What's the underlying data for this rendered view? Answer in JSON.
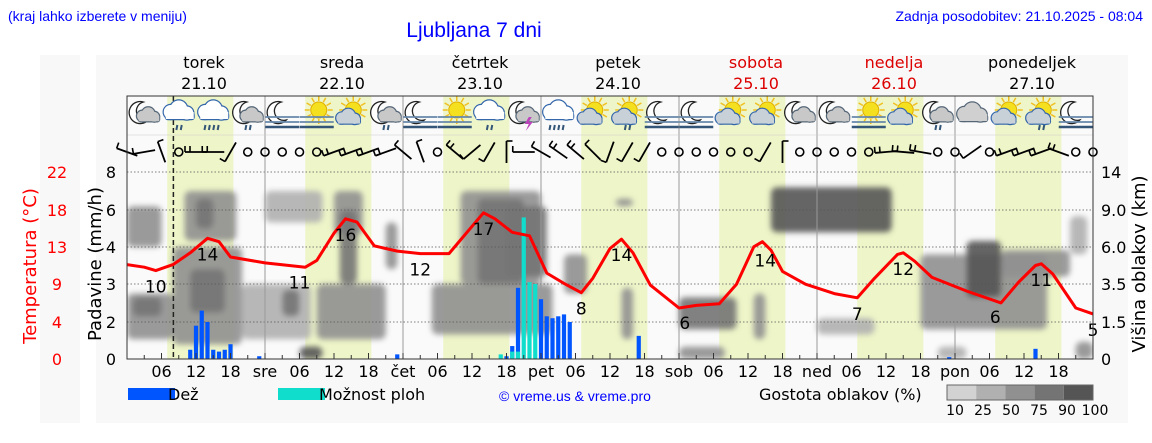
{
  "header": {
    "region_hint": "(kraj lahko izberete v meniju)",
    "title": "Ljubljana 7 dni",
    "updated": "Zadnja posodobitev: 21.10.2025 - 08:04"
  },
  "colors": {
    "link": "#0000ff",
    "weekend": "#dd0000",
    "temperature": "#ff0000",
    "rain": "#0055ff",
    "shower": "#11ddcc",
    "daylight": "#eef5c8",
    "background": "#f8f8f8"
  },
  "legend": {
    "rain": "Dež",
    "shower": "Možnost ploh",
    "copyright": "© vreme.us & vreme.pro",
    "cloud_density": "Gostota oblakov (%)",
    "density_steps": [
      "10",
      "25",
      "50",
      "75",
      "90",
      "100"
    ],
    "density_colors": [
      "#d2d2d2",
      "#b0b0b0",
      "#909090",
      "#747474",
      "#555555"
    ]
  },
  "chart_data": {
    "type": "line+bar+heatmap",
    "title": "Ljubljana 7 dni",
    "days": [
      {
        "name": "torek",
        "date": "21.10",
        "weekend": false
      },
      {
        "name": "sreda",
        "date": "22.10",
        "weekend": false
      },
      {
        "name": "četrtek",
        "date": "23.10",
        "weekend": false
      },
      {
        "name": "petek",
        "date": "24.10",
        "weekend": false
      },
      {
        "name": "sobota",
        "date": "25.10",
        "weekend": true
      },
      {
        "name": "nedelja",
        "date": "26.10",
        "weekend": true
      },
      {
        "name": "ponedeljek",
        "date": "27.10",
        "weekend": false
      }
    ],
    "x_tick_labels": [
      "",
      "06",
      "12",
      "18",
      "sre",
      "06",
      "12",
      "18",
      "čet",
      "06",
      "12",
      "18",
      "pet",
      "06",
      "12",
      "18",
      "sob",
      "06",
      "12",
      "18",
      "ned",
      "06",
      "12",
      "18",
      "pon",
      "06",
      "12",
      "18"
    ],
    "now": "21.10 08:04",
    "daylight": {
      "from": "07:00",
      "to": "18:30"
    },
    "y_temperature": {
      "label": "Temperatura (°C)",
      "ticks": [
        "0",
        "4",
        "9",
        "13",
        "18",
        "22"
      ],
      "range": [
        0,
        22
      ]
    },
    "y_precip": {
      "label": "Padavine (mm/h)",
      "ticks": [
        "0",
        "2",
        "3",
        "4",
        "6",
        "8"
      ]
    },
    "y_cloud_height": {
      "label": "Višina oblakov (km)",
      "ticks": [
        "0",
        "1.5",
        "3.5",
        "6.0",
        "9.0",
        "14"
      ]
    },
    "temperature": [
      [
        "21.10 00:00",
        11.1
      ],
      [
        "21.10 03:00",
        10.8
      ],
      [
        "21.10 05:00",
        10.4
      ],
      [
        "21.10 08:00",
        11.1
      ],
      [
        "21.10 11:00",
        12.5
      ],
      [
        "21.10 14:00",
        14.2
      ],
      [
        "21.10 16:00",
        13.8
      ],
      [
        "21.10 18:00",
        12.0
      ],
      [
        "22.10 00:00",
        11.3
      ],
      [
        "22.10 07:00",
        10.8
      ],
      [
        "22.10 09:00",
        11.6
      ],
      [
        "22.10 12:00",
        14.8
      ],
      [
        "22.10 14:00",
        16.5
      ],
      [
        "22.10 16:00",
        16.1
      ],
      [
        "22.10 19:00",
        13.3
      ],
      [
        "22.10 23:00",
        12.7
      ],
      [
        "23.10 03:00",
        12.4
      ],
      [
        "23.10 08:00",
        12.4
      ],
      [
        "23.10 10:00",
        14.0
      ],
      [
        "23.10 14:00",
        17.2
      ],
      [
        "23.10 16:00",
        16.5
      ],
      [
        "23.10 19:00",
        14.9
      ],
      [
        "23.10 22:00",
        14.5
      ],
      [
        "24.10 01:00",
        10.1
      ],
      [
        "24.10 04:00",
        8.9
      ],
      [
        "24.10 07:00",
        7.8
      ],
      [
        "24.10 09:00",
        9.5
      ],
      [
        "24.10 12:00",
        13.0
      ],
      [
        "24.10 14:00",
        14.1
      ],
      [
        "24.10 16:00",
        12.5
      ],
      [
        "24.10 19:00",
        8.7
      ],
      [
        "25.10 00:00",
        6.0
      ],
      [
        "25.10 03:00",
        6.3
      ],
      [
        "25.10 07:00",
        6.5
      ],
      [
        "25.10 10:00",
        8.8
      ],
      [
        "25.10 13:00",
        13.2
      ],
      [
        "25.10 14:30",
        13.8
      ],
      [
        "25.10 16:00",
        12.8
      ],
      [
        "25.10 18:00",
        10.3
      ],
      [
        "25.10 22:00",
        8.8
      ],
      [
        "26.10 03:00",
        7.7
      ],
      [
        "26.10 07:00",
        7.2
      ],
      [
        "26.10 10:00",
        9.5
      ],
      [
        "26.10 14:00",
        12.3
      ],
      [
        "26.10 15:00",
        12.5
      ],
      [
        "26.10 17:00",
        11.5
      ],
      [
        "26.10 20:00",
        9.6
      ],
      [
        "27.10 02:00",
        8.0
      ],
      [
        "27.10 08:00",
        6.6
      ],
      [
        "27.10 11:00",
        9.0
      ],
      [
        "27.10 14:00",
        11.0
      ],
      [
        "27.10 15:00",
        11.2
      ],
      [
        "27.10 17:00",
        10.0
      ],
      [
        "27.10 21:00",
        6.0
      ],
      [
        "28.10 00:00",
        5.3
      ]
    ],
    "temperature_labels": [
      [
        "21.10 05:00",
        "10"
      ],
      [
        "21.10 14:00",
        "14"
      ],
      [
        "22.10 06:00",
        "11"
      ],
      [
        "22.10 14:00",
        "16"
      ],
      [
        "23.10 03:00",
        "12"
      ],
      [
        "23.10 14:00",
        "17"
      ],
      [
        "24.10 07:00",
        "8"
      ],
      [
        "24.10 14:00",
        "14"
      ],
      [
        "25.10 01:00",
        "6"
      ],
      [
        "25.10 15:00",
        "14"
      ],
      [
        "26.10 07:00",
        "7"
      ],
      [
        "26.10 15:00",
        "12"
      ],
      [
        "27.10 07:00",
        "6"
      ],
      [
        "27.10 15:00",
        "11"
      ],
      [
        "28.10 00:00",
        "5"
      ]
    ],
    "precipitation_mm_h": [
      {
        "t": "21.10 11:00",
        "rain": 0.5
      },
      {
        "t": "21.10 12:00",
        "rain": 1.8
      },
      {
        "t": "21.10 13:00",
        "rain": 2.3
      },
      {
        "t": "21.10 14:00",
        "rain": 2.0
      },
      {
        "t": "21.10 15:00",
        "rain": 0.5
      },
      {
        "t": "21.10 16:00",
        "rain": 0.4
      },
      {
        "t": "21.10 17:00",
        "rain": 0.5
      },
      {
        "t": "21.10 18:00",
        "rain": 0.8
      },
      {
        "t": "21.10 23:00",
        "rain": 0.15
      },
      {
        "t": "22.10 23:00",
        "rain": 0.25
      },
      {
        "t": "23.10 17:00",
        "shower": 0.25
      },
      {
        "t": "23.10 18:00",
        "rain": 0.15
      },
      {
        "t": "23.10 19:00",
        "rain": 0.7,
        "shower": 0.4
      },
      {
        "t": "23.10 20:00",
        "rain": 2.9,
        "shower": 0.4
      },
      {
        "t": "23.10 21:00",
        "shower": 5.6
      },
      {
        "t": "23.10 22:00",
        "shower": 3.05
      },
      {
        "t": "23.10 23:00",
        "shower": 3.0
      },
      {
        "t": "24.10 00:00",
        "rain": 2.6
      },
      {
        "t": "24.10 01:00",
        "rain": 2.15
      },
      {
        "t": "24.10 02:00",
        "rain": 2.1
      },
      {
        "t": "24.10 03:00",
        "rain": 2.15
      },
      {
        "t": "24.10 04:00",
        "rain": 2.2
      },
      {
        "t": "24.10 05:00",
        "rain": 2.0
      },
      {
        "t": "24.10 17:00",
        "rain": 1.25
      },
      {
        "t": "26.10 23:00",
        "rain": 0.1
      },
      {
        "t": "27.10 14:00",
        "rain": 0.55
      }
    ],
    "cloud_density": [
      [
        "21.10 00:00",
        "21.10 08:00",
        0.8,
        3.0,
        50
      ],
      [
        "21.10 01:00",
        "21.10 06:00",
        1.8,
        2.8,
        75
      ],
      [
        "21.10 00:00",
        "21.10 06:00",
        6.0,
        9.5,
        50
      ],
      [
        "21.10 08:00",
        "21.10 20:00",
        0.6,
        6.0,
        50
      ],
      [
        "21.10 11:00",
        "21.10 17:00",
        2.0,
        4.5,
        75
      ],
      [
        "21.10 10:00",
        "21.10 19:00",
        6.5,
        11.5,
        50
      ],
      [
        "21.10 12:00",
        "21.10 15:00",
        7.5,
        10.5,
        75
      ],
      [
        "21.10 20:00",
        "22.10 08:00",
        0.8,
        3.5,
        25
      ],
      [
        "22.10 03:00",
        "22.10 06:00",
        1.8,
        3.2,
        75
      ],
      [
        "22.10 00:00",
        "22.10 10:00",
        8.0,
        11.5,
        25
      ],
      [
        "22.10 12:00",
        "22.10 17:00",
        7.0,
        11.5,
        50
      ],
      [
        "22.10 13:00",
        "22.10 16:00",
        3.5,
        9.0,
        75
      ],
      [
        "22.10 09:00",
        "22.10 21:00",
        0.8,
        3.5,
        50
      ],
      [
        "22.10 06:00",
        "22.10 10:00",
        0.0,
        0.5,
        90
      ],
      [
        "22.10 21:00",
        "22.10 23:00",
        4.5,
        8.0,
        50
      ],
      [
        "23.10 05:00",
        "24.10 02:00",
        1.0,
        3.5,
        50
      ],
      [
        "23.10 10:00",
        "24.10 00:00",
        3.5,
        11.5,
        50
      ],
      [
        "23.10 13:00",
        "23.10 21:00",
        3.5,
        10.5,
        75
      ],
      [
        "23.10 18:00",
        "24.10 01:00",
        4.0,
        9.5,
        75
      ],
      [
        "24.10 04:00",
        "24.10 08:00",
        3.0,
        5.5,
        50
      ],
      [
        "24.10 13:00",
        "24.10 16:00",
        9.5,
        10.5,
        50
      ],
      [
        "24.10 14:00",
        "24.10 16:00",
        0.8,
        3.3,
        50
      ],
      [
        "25.10 00:00",
        "25.10 10:00",
        1.2,
        2.8,
        75
      ],
      [
        "25.10 00:00",
        "25.10 08:00",
        0.0,
        0.5,
        50
      ],
      [
        "25.10 13:00",
        "25.10 15:00",
        0.8,
        3.0,
        50
      ],
      [
        "25.10 16:00",
        "26.10 13:00",
        7.2,
        12.0,
        90
      ],
      [
        "26.10 00:00",
        "26.10 10:00",
        1.0,
        1.7,
        25
      ],
      [
        "26.10 18:00",
        "27.10 16:00",
        1.2,
        5.5,
        50
      ],
      [
        "27.10 02:00",
        "27.10 08:00",
        2.8,
        6.5,
        90
      ],
      [
        "27.10 08:00",
        "27.10 20:00",
        4.0,
        5.8,
        50
      ],
      [
        "27.10 20:00",
        "27.10 23:00",
        5.5,
        8.5,
        25
      ],
      [
        "26.10 21:00",
        "27.10 02:00",
        0.0,
        0.5,
        25
      ],
      [
        "27.10 21:00",
        "28.10 00:00",
        0.0,
        0.7,
        50
      ]
    ],
    "weather_icons": [
      "moon-cloud",
      "cloud-rain",
      "cloud-heavy-rain",
      "moon-cloud-rain",
      "moon-fog",
      "sun-fog",
      "sun-cloud",
      "moon-cloud-rain",
      "moon-fog",
      "sun-fog",
      "cloud-rain",
      "moon-thunder",
      "cloud-heavy-rain",
      "sun-cloud",
      "sun-cloud-rain",
      "moon-fog",
      "moon-fog",
      "sun-cloud",
      "sun-cloud",
      "moon-cloud",
      "moon-cloud",
      "sun-fog",
      "sun-cloud",
      "moon-cloud-rain",
      "cloud",
      "sun-cloud",
      "sun-cloud-rain",
      "moon-fog"
    ],
    "wind": [
      [
        20,
        1
      ],
      [
        -10,
        1
      ],
      [
        70,
        1
      ],
      "calm",
      [
        0,
        2
      ],
      [
        0,
        2
      ],
      [
        -60,
        1
      ],
      "calm",
      "calm",
      "calm",
      "calm",
      "calm",
      [
        -20,
        2
      ],
      [
        -20,
        2
      ],
      [
        -20,
        2
      ],
      [
        -20,
        2
      ],
      [
        40,
        1
      ],
      [
        70,
        1
      ],
      "calm",
      [
        40,
        2
      ],
      [
        -40,
        1
      ],
      [
        -60,
        1
      ],
      [
        90,
        1
      ],
      [
        0,
        1
      ],
      [
        30,
        1
      ],
      [
        35,
        2
      ],
      [
        40,
        2
      ],
      [
        45,
        1
      ],
      [
        -70,
        1
      ],
      [
        -60,
        1
      ],
      [
        -60,
        1
      ],
      "calm",
      "calm",
      "calm",
      "calm",
      "calm",
      "calm",
      [
        -60,
        1
      ],
      [
        90,
        1
      ],
      "calm",
      "calm",
      "calm",
      "calm",
      "calm",
      [
        -5,
        2
      ],
      [
        5,
        2
      ],
      [
        10,
        2
      ],
      "calm",
      "calm",
      [
        -35,
        1
      ],
      "calm",
      [
        -20,
        2
      ],
      [
        -20,
        2
      ],
      [
        -20,
        2
      ],
      [
        20,
        2
      ],
      "calm",
      "calm"
    ]
  }
}
